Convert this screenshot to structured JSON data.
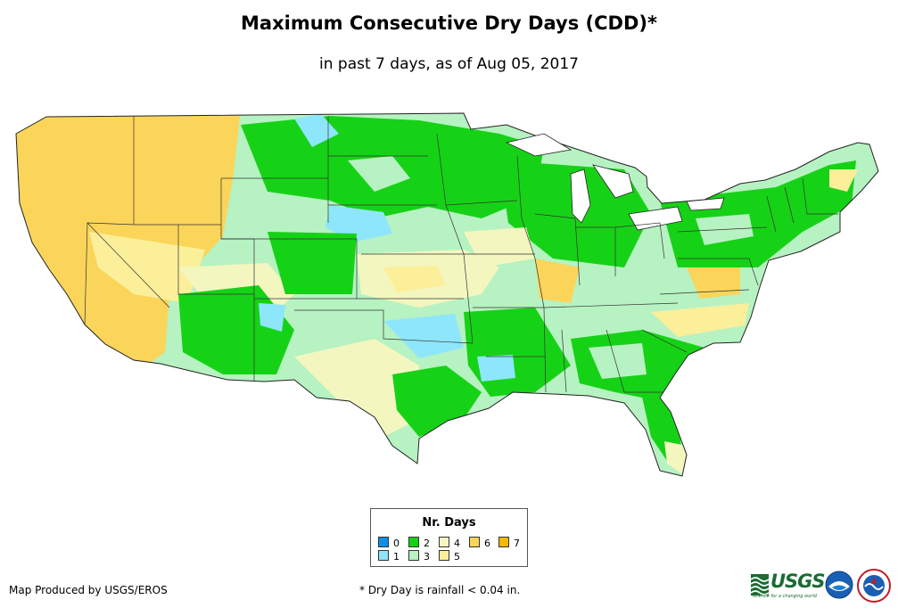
{
  "title": "Maximum Consecutive Dry Days (CDD)*",
  "subtitle": "in past 7 days, as of Aug 05, 2017",
  "legend": {
    "title": "Nr. Days",
    "items": [
      {
        "label": "0",
        "color": "#0d8fe8"
      },
      {
        "label": "1",
        "color": "#8ee6fb"
      },
      {
        "label": "2",
        "color": "#16d216"
      },
      {
        "label": "3",
        "color": "#b7f2c2"
      },
      {
        "label": "4",
        "color": "#f4f6c0"
      },
      {
        "label": "5",
        "color": "#fbef9a"
      },
      {
        "label": "6",
        "color": "#fad55a"
      },
      {
        "label": "7",
        "color": "#f5b800"
      }
    ]
  },
  "credit": "Map Produced by USGS/EROS",
  "footnote": "* Dry Day is rainfall < 0.04 in.",
  "logos": {
    "usgs": {
      "name": "usgs-logo",
      "text": "USGS",
      "tagline": "science for a changing world",
      "color": "#1b6b34"
    },
    "noaa": {
      "name": "noaa-logo"
    },
    "nws": {
      "name": "national-weather-service-logo"
    }
  }
}
